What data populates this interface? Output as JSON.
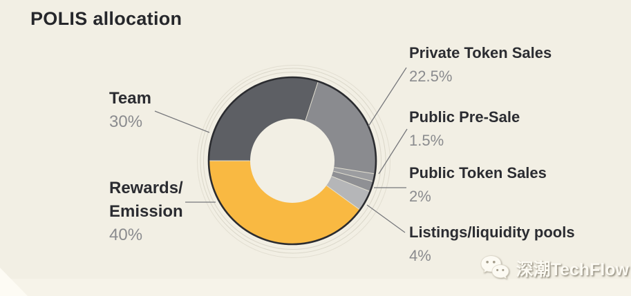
{
  "header": {
    "title": "POLIS allocation"
  },
  "chart_data": {
    "type": "pie",
    "subtype": "donut",
    "title": "POLIS allocation",
    "start_angle_deg_clockwise_from_top": 270,
    "direction": "clockwise",
    "inner_radius_ratio": 0.5,
    "slices": [
      {
        "id": "team",
        "label": "Team",
        "value": 30,
        "display_pct": "30%",
        "color": "#5d5f64"
      },
      {
        "id": "private-token-sales",
        "label": "Private Token Sales",
        "value": 22.5,
        "display_pct": "22.5%",
        "color": "#8a8b8f"
      },
      {
        "id": "public-pre-sale",
        "label": "Public Pre-Sale",
        "value": 1.5,
        "display_pct": "1.5%",
        "color": "#9c9da0"
      },
      {
        "id": "public-token-sales",
        "label": "Public Token Sales",
        "value": 2,
        "display_pct": "2%",
        "color": "#8f9094"
      },
      {
        "id": "listings",
        "label": "Listings/liquidity pools",
        "value": 4,
        "display_pct": "4%",
        "color": "#b5b6b8"
      },
      {
        "id": "rewards-emission",
        "label": "Rewards/Emission",
        "value": 40,
        "display_pct": "40%",
        "color": "#f9b942"
      }
    ],
    "legend_position": "callout-labels",
    "grid": false
  },
  "callouts": [
    {
      "id": "team",
      "lines": [
        "Team"
      ],
      "pct": "30%"
    },
    {
      "id": "rewards",
      "lines": [
        "Rewards/",
        "Emission"
      ],
      "pct": "40%"
    },
    {
      "id": "private",
      "lines": [
        "Private Token Sales"
      ],
      "pct": "22.5%"
    },
    {
      "id": "presale",
      "lines": [
        "Public Pre-Sale"
      ],
      "pct": "1.5%"
    },
    {
      "id": "public",
      "lines": [
        "Public Token Sales"
      ],
      "pct": "2%"
    },
    {
      "id": "listings",
      "lines": [
        "Listings/liquidity pools"
      ],
      "pct": "4%"
    }
  ],
  "watermark": {
    "icon": "wechat-icon",
    "text": "深潮TechFlow"
  },
  "colors": {
    "background": "#f2efe4",
    "background_bottom_strip": "#f6f3e9",
    "corner_triangle": "#fdfbf4",
    "title_text": "#26272b",
    "label_text": "#2b2c31",
    "pct_text": "#8a8b8e",
    "leader_line": "#76777b",
    "donut_border": "#2b2c30",
    "donut_hole": "#f4f1e6",
    "decor_ring": "#d9d5c8",
    "slice_separator": "#e3e0d2",
    "accent_yellow": "#f9b942"
  }
}
